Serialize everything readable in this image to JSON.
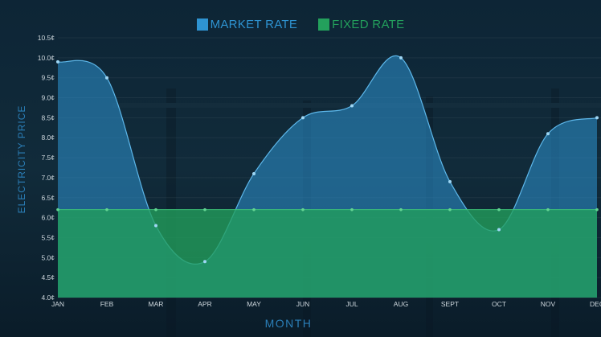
{
  "colors": {
    "background": "#0c2233",
    "market": "#2e93d1",
    "fixed": "#23a05c",
    "label": "#2b7fb8",
    "tick": "#cfd8de"
  },
  "chart_data": {
    "type": "area",
    "x": [
      "JAN",
      "FEB",
      "MAR",
      "APR",
      "MAY",
      "JUN",
      "JUL",
      "AUG",
      "SEPT",
      "OCT",
      "NOV",
      "DEC"
    ],
    "xlabel": "MONTH",
    "ylabel": "ELECTRICITY PRICE",
    "ylim": [
      4.0,
      10.5
    ],
    "yticks": [
      "4.0¢",
      "4.5¢",
      "5.0¢",
      "5.5¢",
      "6.0¢",
      "6.5¢",
      "7.0¢",
      "7.5¢",
      "8.0¢",
      "8.5¢",
      "9.0¢",
      "9.5¢",
      "10.0¢",
      "10.5¢"
    ],
    "legend_position": "top-center",
    "series": [
      {
        "name": "MARKET RATE",
        "values": [
          9.9,
          9.5,
          5.8,
          4.9,
          7.1,
          8.5,
          8.8,
          10.0,
          6.9,
          5.7,
          8.1,
          8.5
        ]
      },
      {
        "name": "FIXED RATE",
        "values": [
          6.2,
          6.2,
          6.2,
          6.2,
          6.2,
          6.2,
          6.2,
          6.2,
          6.2,
          6.2,
          6.2,
          6.2
        ]
      }
    ]
  }
}
